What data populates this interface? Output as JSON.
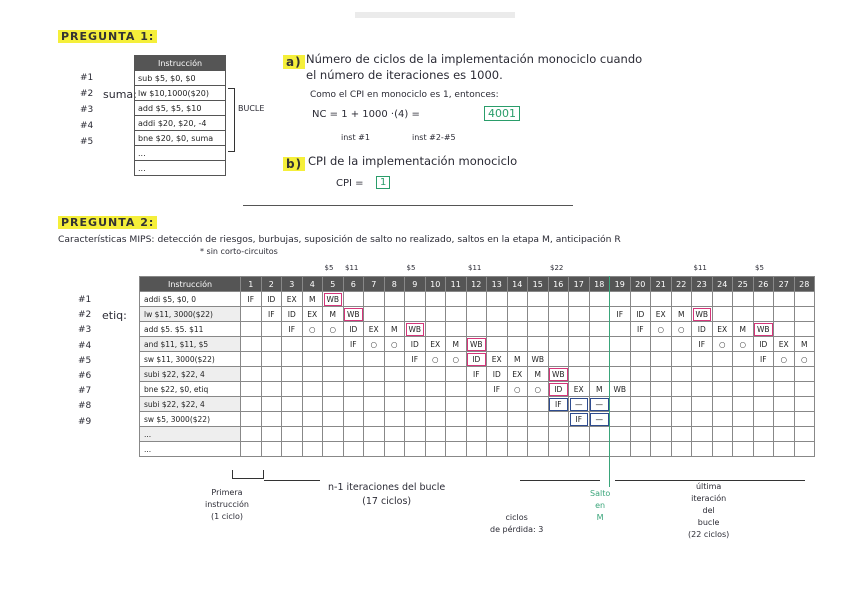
{
  "q1": {
    "title": "PREGUNTA 1:",
    "row_nums": [
      "#1",
      "#2",
      "#3",
      "#4",
      "#5"
    ],
    "label": "suma:",
    "table_header": "Instrucción",
    "instructions": [
      "sub $5, $0, $0",
      "lw $10,1000($20)",
      "add $5, $5, $10",
      "addi $20, $20, -4",
      "bne $20, $0, suma",
      "...",
      "..."
    ],
    "bucle": "BUCLE",
    "a_letter": "a)",
    "a_text_1": "Número de ciclos de la implementación monociclo cuando",
    "a_text_2": "el número de iteraciones es 1000.",
    "a_cpi_line": "Como el CPI en monociclo es 1, entonces:",
    "a_formula": "NC =  1 + 1000 ·(4) =",
    "a_result": "4001",
    "a_note_1": "inst #1",
    "a_note_2": "inst #2-#5",
    "b_letter": "b)",
    "b_text": "CPI de la implementación monociclo",
    "b_cpi": "CPI =",
    "b_value": "1"
  },
  "q2": {
    "title": "PREGUNTA 2:",
    "characteristics": "Características MIPS: detección de riesgos, burbujas, suposición de salto no realizado, saltos en la etapa M, anticipación R",
    "note": "* sin corto-circuitos",
    "row_nums": [
      "#1",
      "#2",
      "#3",
      "#4",
      "#5",
      "#6",
      "#7",
      "#8",
      "#9"
    ],
    "label": "etiq:",
    "header": "Instrucción",
    "cycles": [
      "1",
      "2",
      "3",
      "4",
      "5",
      "6",
      "7",
      "8",
      "9",
      "10",
      "11",
      "12",
      "13",
      "14",
      "15",
      "16",
      "17",
      "18",
      "19",
      "20",
      "21",
      "22",
      "23",
      "24",
      "25",
      "26",
      "27",
      "28"
    ],
    "reg_marks": [
      {
        "col": "5",
        "text": "$5"
      },
      {
        "col": "6",
        "text": "$11"
      },
      {
        "col": "9",
        "text": "$5"
      },
      {
        "col": "12",
        "text": "$11"
      },
      {
        "col": "16",
        "text": "$22"
      },
      {
        "col": "23",
        "text": "$11"
      },
      {
        "col": "26",
        "text": "$5"
      }
    ],
    "rows": [
      {
        "instr": "addi $5, $0, 0",
        "cells": {
          "1": "IF",
          "2": "ID",
          "3": "EX",
          "4": "M",
          "5": "WB"
        }
      },
      {
        "instr": "lw $11, 3000($22)",
        "cells": {
          "2": "IF",
          "3": "ID",
          "4": "EX",
          "5": "M",
          "6": "WB",
          "19": "IF",
          "20": "ID",
          "21": "EX",
          "22": "M",
          "23": "WB"
        }
      },
      {
        "instr": "add $5. $5. $11",
        "cells": {
          "3": "IF",
          "4": "○",
          "5": "○",
          "6": "ID",
          "7": "EX",
          "8": "M",
          "9": "WB",
          "20": "IF",
          "21": "○",
          "22": "○",
          "23": "ID",
          "24": "EX",
          "25": "M",
          "26": "WB"
        }
      },
      {
        "instr": "and $11, $11, $5",
        "cells": {
          "6": "IF",
          "7": "○",
          "8": "○",
          "9": "ID",
          "10": "EX",
          "11": "M",
          "12": "WB",
          "23": "IF",
          "24": "○",
          "25": "○",
          "26": "ID",
          "27": "EX",
          "28": "M"
        }
      },
      {
        "instr": "sw $11, 3000($22)",
        "cells": {
          "9": "IF",
          "10": "○",
          "11": "○",
          "12": "ID",
          "13": "EX",
          "14": "M",
          "15": "WB",
          "26": "IF",
          "27": "○",
          "28": "○"
        }
      },
      {
        "instr": "subi $22, $22, 4",
        "cells": {
          "12": "IF",
          "13": "ID",
          "14": "EX",
          "15": "M",
          "16": "WB"
        }
      },
      {
        "instr": "bne $22, $0, etiq",
        "cells": {
          "13": "IF",
          "14": "○",
          "15": "○",
          "16": "ID",
          "17": "EX",
          "18": "M",
          "19": "WB"
        }
      },
      {
        "instr": "subi $22, $22, 4",
        "cells": {
          "16": "IF",
          "17": "—",
          "18": "—"
        }
      },
      {
        "instr": "sw $5, 3000($22)",
        "cells": {
          "17": "IF",
          "18": "—"
        }
      },
      {
        "instr": "...",
        "cells": {}
      },
      {
        "instr": "...",
        "cells": {}
      }
    ],
    "pink_boxes": [
      "1-5",
      "2-6",
      "2-23",
      "3-9",
      "3-26",
      "4-12",
      "5-12",
      "6-16",
      "7-16"
    ],
    "blue_boxes": [
      "8-16",
      "8-17",
      "8-18",
      "9-17",
      "9-18"
    ],
    "annot_first": [
      "Primera",
      "instrucción",
      "(1 ciclo)"
    ],
    "annot_iter": [
      "n-1 iteraciones del bucle",
      "(17 ciclos)"
    ],
    "annot_loss": [
      "ciclos",
      "de pérdida: 3"
    ],
    "annot_jump": [
      "Salto",
      "en",
      "M"
    ],
    "annot_last": [
      "última",
      "iteración",
      "del",
      "bucle",
      "(22 ciclos)"
    ]
  }
}
